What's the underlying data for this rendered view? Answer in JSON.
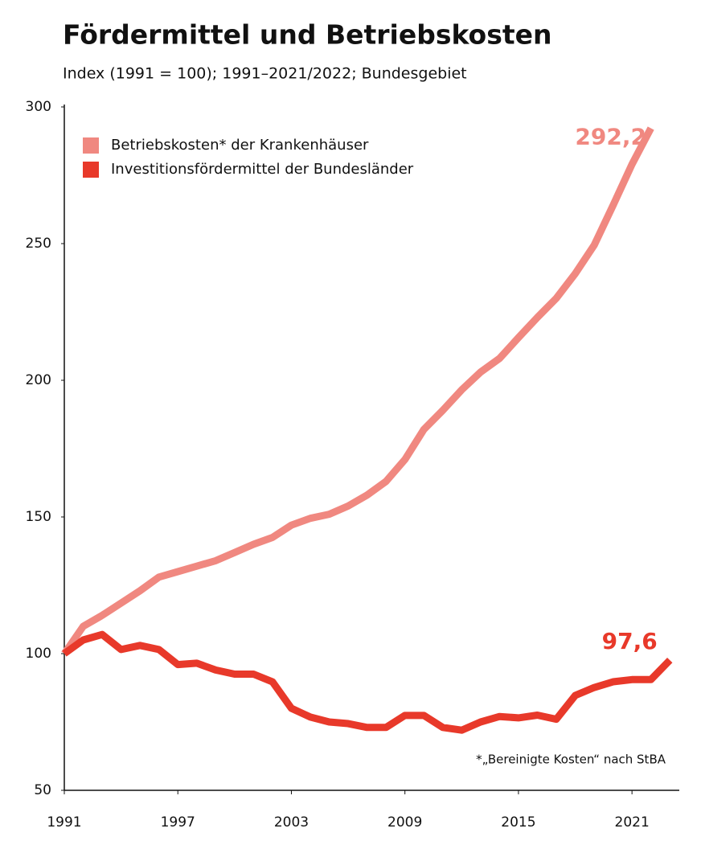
{
  "chart_data": {
    "type": "line",
    "title": "Fördermittel und Betriebskosten",
    "subtitle": "Index (1991 = 100); 1991–2021/2022; Bundesgebiet",
    "annotation": "*„Bereinigte Kosten“ nach StBA",
    "x": [
      1991,
      1992,
      1993,
      1994,
      1995,
      1996,
      1997,
      1998,
      1999,
      2000,
      2001,
      2002,
      2003,
      2004,
      2005,
      2006,
      2007,
      2008,
      2009,
      2010,
      2011,
      2012,
      2013,
      2014,
      2015,
      2016,
      2017,
      2018,
      2019,
      2020,
      2021,
      2022,
      2023
    ],
    "series": [
      {
        "name": "Betriebskosten* der Krankenhäuser",
        "color": "#f08880",
        "values": [
          100,
          110,
          114,
          118.5,
          123,
          128,
          130,
          132,
          134,
          137,
          140,
          142.5,
          147,
          149.5,
          151,
          154,
          158,
          163,
          171,
          182,
          189,
          196.5,
          203,
          208,
          215.6,
          223,
          230,
          239,
          249.4,
          264,
          279,
          292.2,
          null
        ],
        "value_labels": [
          null,
          null,
          null,
          null,
          null,
          null,
          null,
          null,
          null,
          null,
          null,
          null,
          null,
          null,
          null,
          null,
          null,
          null,
          null,
          null,
          null,
          null,
          null,
          null,
          null,
          null,
          null,
          null,
          null,
          null,
          null,
          "292,2",
          null
        ]
      },
      {
        "name": "Investitionsfördermittel der Bundesländer",
        "color": "#e8392a",
        "values": [
          100,
          105,
          107,
          101.5,
          103,
          101.5,
          96,
          96.5,
          94,
          92.5,
          92.5,
          89.7,
          80,
          76.8,
          75,
          74.4,
          73,
          73,
          77.4,
          77.4,
          73,
          72,
          75,
          77,
          76.5,
          77.5,
          76,
          84.7,
          87.6,
          89.7,
          90.5,
          90.5,
          97.6
        ],
        "value_labels": [
          null,
          null,
          null,
          null,
          null,
          null,
          null,
          null,
          null,
          null,
          null,
          null,
          null,
          null,
          null,
          null,
          null,
          null,
          null,
          null,
          null,
          null,
          null,
          null,
          null,
          null,
          null,
          null,
          null,
          null,
          null,
          null,
          "97,6"
        ]
      }
    ],
    "xlim": [
      1991,
      2023.5
    ],
    "xticks": [
      1991,
      1997,
      2003,
      2009,
      2015,
      2021
    ],
    "ylim": [
      50,
      300
    ],
    "yticks": [
      50,
      100,
      150,
      200,
      250,
      300
    ],
    "legend": "top-left"
  }
}
